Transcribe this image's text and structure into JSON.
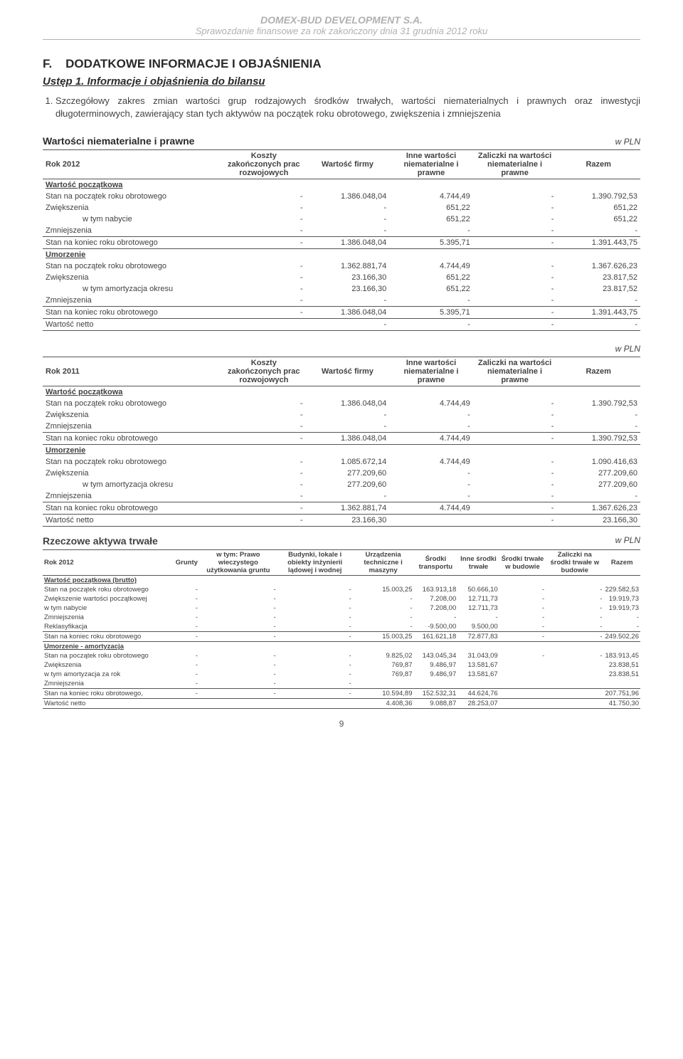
{
  "header": {
    "company": "DOMEX-BUD DEVELOPMENT S.A.",
    "subtitle": "Sprawozdanie finansowe za rok zakończony dnia 31 grudnia 2012 roku"
  },
  "section_letter": "F.",
  "section_title": "DODATKOWE INFORMACJE I OBJAŚNIENIA",
  "ustep": "Ustęp 1. Informacje i objaśnienia do bilansu",
  "para1": "Szczegółowy zakres zmian wartości grup rodzajowych środków trwałych, wartości niematerialnych i prawnych oraz inwestycji długoterminowych, zawierający stan tych aktywów na początek roku obrotowego, zwiększenia i zmniejszenia",
  "table1_title": "Wartości niematerialne i prawne",
  "wpln": "w PLN",
  "intangibles_cols": {
    "col1": "Koszty zakończonych prac rozwojowych",
    "col2": "Wartość firmy",
    "col3": "Inne wartości niematerialne i prawne",
    "col4": "Zaliczki na wartości niematerialne i prawne",
    "col5": "Razem"
  },
  "t2012_label": "Rok 2012",
  "t2011_label": "Rok 2011",
  "labels": {
    "wartosc_pocz": "Wartość początkowa",
    "stan_pocz": "Stan na początek roku obrotowego",
    "zwiekszenia": "Zwiększenia",
    "wtym_nabycie": "w tym nabycie",
    "zmniejszenia": "Zmniejszenia",
    "stan_koniec": "Stan na koniec roku obrotowego",
    "umorzenie": "Umorzenie",
    "wtym_amort": "w tym amortyzacja okresu",
    "wtym_amort_rok": "w tym amortyzacja za rok",
    "wartosc_netto": "Wartość netto",
    "wartosc_pocz_brutto": "Wartość początkowa (brutto)",
    "zwiek_wartosc_pocz": "Zwiększenie wartości początkowej",
    "reklas": "Reklasyfikacja",
    "umorz_amort": "Umorzenie - amortyzacja",
    "stan_koniec_comma": "Stan na koniec roku obrotowego,"
  },
  "t2012": {
    "wp_stan_pocz": [
      "-",
      "1.386.048,04",
      "4.744,49",
      "-",
      "1.390.792,53"
    ],
    "wp_zwiek": [
      "-",
      "-",
      "651,22",
      "-",
      "651,22"
    ],
    "wp_nabycie": [
      "-",
      "-",
      "651,22",
      "-",
      "651,22"
    ],
    "wp_zmniej": [
      "-",
      "-",
      "-",
      "-",
      "-"
    ],
    "wp_stan_kon": [
      "-",
      "1.386.048,04",
      "5.395,71",
      "-",
      "1.391.443,75"
    ],
    "um_stan_pocz": [
      "-",
      "1.362.881,74",
      "4.744,49",
      "-",
      "1.367.626,23"
    ],
    "um_zwiek": [
      "-",
      "23.166,30",
      "651,22",
      "-",
      "23.817,52"
    ],
    "um_amort": [
      "-",
      "23.166,30",
      "651,22",
      "-",
      "23.817,52"
    ],
    "um_zmniej": [
      "-",
      "-",
      "-",
      "-",
      "-"
    ],
    "um_stan_kon": [
      "-",
      "1.386.048,04",
      "5.395,71",
      "-",
      "1.391.443,75"
    ],
    "netto": [
      "",
      "-",
      "-",
      "-",
      "-"
    ]
  },
  "t2011": {
    "wp_stan_pocz": [
      "-",
      "1.386.048,04",
      "4.744,49",
      "-",
      "1.390.792,53"
    ],
    "wp_zwiek": [
      "-",
      "-",
      "-",
      "-",
      "-"
    ],
    "wp_zmniej": [
      "-",
      "-",
      "-",
      "-",
      "-"
    ],
    "wp_stan_kon": [
      "-",
      "1.386.048,04",
      "4.744,49",
      "-",
      "1.390.792,53"
    ],
    "um_stan_pocz": [
      "-",
      "1.085.672,14",
      "4.744,49",
      "-",
      "1.090.416,63"
    ],
    "um_zwiek": [
      "-",
      "277.209,60",
      "-",
      "-",
      "277.209,60"
    ],
    "um_amort": [
      "-",
      "277.209,60",
      "-",
      "-",
      "277.209,60"
    ],
    "um_zmniej": [
      "-",
      "-",
      "-",
      "-",
      "-"
    ],
    "um_stan_kon": [
      "-",
      "1.362.881,74",
      "4.744,49",
      "-",
      "1.367.626,23"
    ],
    "netto": [
      "-",
      "23.166,30",
      "",
      "-",
      "23.166,30"
    ]
  },
  "rzecz_title": "Rzeczowe aktywa trwałe",
  "rzecz_cols": {
    "c1": "Grunty",
    "c2": "w tym: Prawo wieczystego użytkowania gruntu",
    "c3": "Budynki, lokale i obiekty inżynierii lądowej i wodnej",
    "c4": "Urządzenia techniczne i maszyny",
    "c5": "Środki transportu",
    "c6": "Inne środki trwałe",
    "c7": "Środki trwałe w budowie",
    "c8": "Zaliczki na środki trwałe w budowie",
    "c9": "Razem"
  },
  "rzecz_2012_label": "Rok 2012",
  "rzecz": {
    "wp_stan_pocz": [
      "-",
      "-",
      "-",
      "15.003,25",
      "163.913,18",
      "50.666,10",
      "-",
      "-",
      "229.582,53"
    ],
    "wp_zwiek": [
      "-",
      "-",
      "-",
      "-",
      "7.208,00",
      "12.711,73",
      "-",
      "-",
      "19.919,73"
    ],
    "wp_nabycie": [
      "-",
      "-",
      "-",
      "-",
      "7.208,00",
      "12.711,73",
      "-",
      "-",
      "19.919,73"
    ],
    "wp_zmniej": [
      "-",
      "-",
      "-",
      "-",
      "-",
      "-",
      "-",
      "-",
      "-"
    ],
    "wp_reklas": [
      "-",
      "-",
      "-",
      "-",
      "-9.500,00",
      "9.500,00",
      "-",
      "-",
      "-"
    ],
    "wp_stan_kon": [
      "-",
      "-",
      "-",
      "15.003,25",
      "161.621,18",
      "72.877,83",
      "-",
      "-",
      "249.502,26"
    ],
    "um_stan_pocz": [
      "-",
      "-",
      "-",
      "9.825,02",
      "143.045,34",
      "31.043,09",
      "-",
      "-",
      "183.913,45"
    ],
    "um_zwiek": [
      "-",
      "-",
      "-",
      "769,87",
      "9.486,97",
      "13.581,67",
      "",
      "",
      "23.838,51"
    ],
    "um_amort": [
      "-",
      "-",
      "-",
      "769,87",
      "9.486,97",
      "13.581,67",
      "",
      "",
      "23.838,51"
    ],
    "um_zmniej": [
      "-",
      "-",
      "-",
      "",
      "",
      "",
      "",
      "",
      ""
    ],
    "um_stan_kon": [
      "-",
      "-",
      "-",
      "10.594,89",
      "152.532,31",
      "44.624,76",
      "",
      "",
      "207.751,96"
    ],
    "netto": [
      "",
      "",
      "",
      "4.408,36",
      "9.088,87",
      "28.253,07",
      "",
      "",
      "41.750,30"
    ]
  },
  "page_number": "9"
}
